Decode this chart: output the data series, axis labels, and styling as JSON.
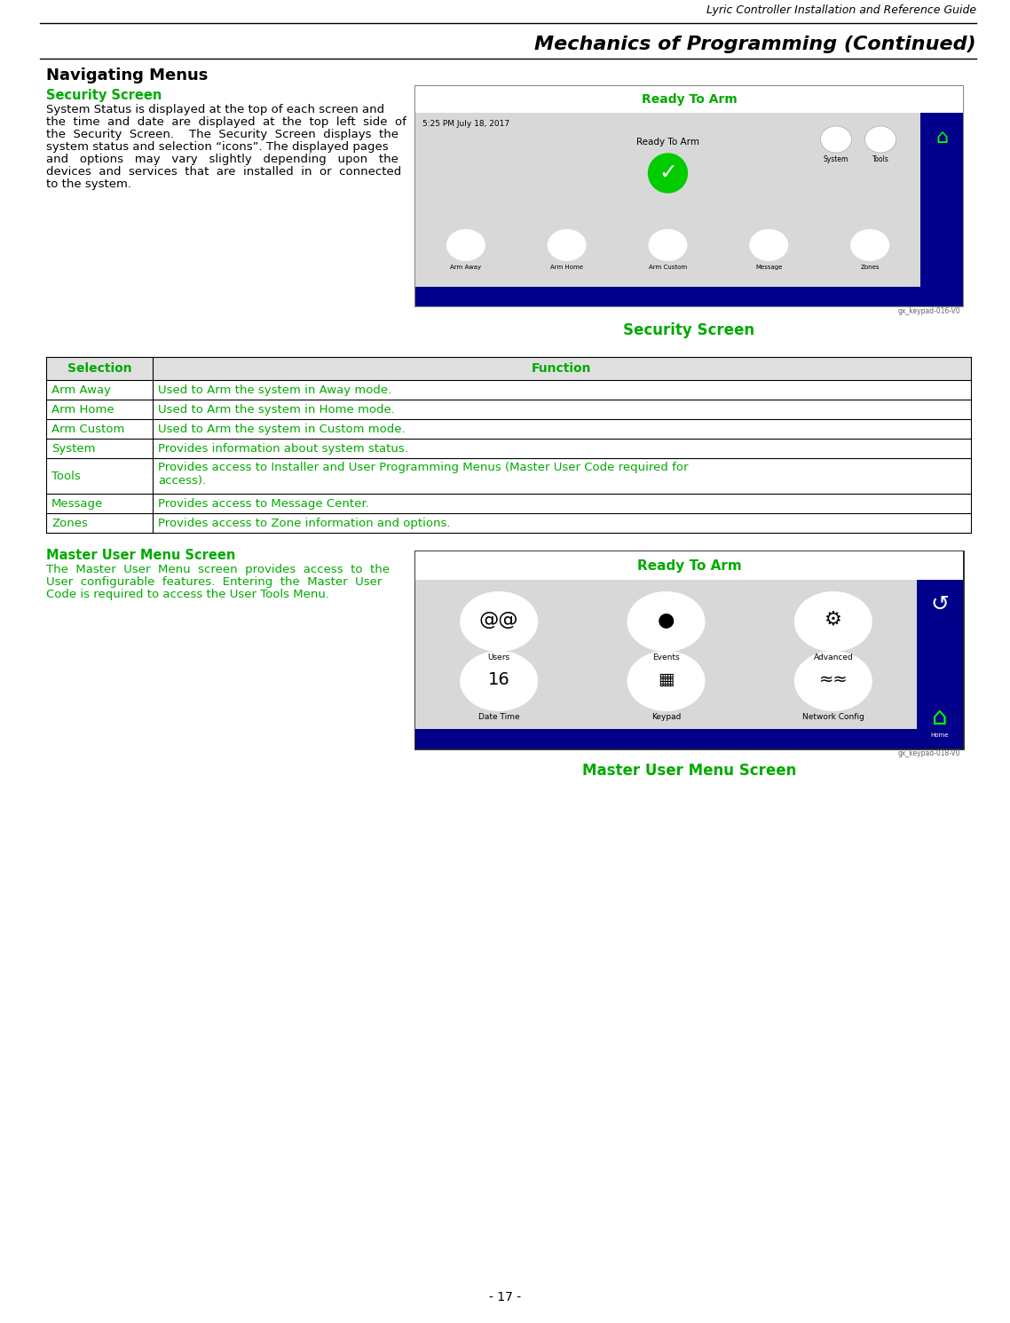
{
  "title_top": "Lyric Controller Installation and Reference Guide",
  "title_main": "Mechanics of Programming (Continued)",
  "section_title": "Navigating Menus",
  "subsection1_title": "Security Screen",
  "subsection1_body_lines": [
    "System Status is displayed at the top of each screen and",
    "the  time  and  date  are  displayed  at  the  top  left  side  of",
    "the  Security  Screen.    The  Security  Screen  displays  the",
    "system status and selection “icons”. The displayed pages",
    "and   options   may   vary   slightly   depending   upon   the",
    "devices  and  services  that  are  installed  in  or  connected",
    "to the system."
  ],
  "image1_caption": "Security Screen",
  "image1_label": "gx_keypad-016-V0",
  "table_header": [
    "Selection",
    "Function"
  ],
  "table_rows": [
    [
      "Arm Away",
      "Used to Arm the system in Away mode."
    ],
    [
      "Arm Home",
      "Used to Arm the system in Home mode."
    ],
    [
      "Arm Custom",
      "Used to Arm the system in Custom mode."
    ],
    [
      "System",
      "Provides information about system status."
    ],
    [
      "Tools",
      "Provides access to Installer and User Programming Menus (Master User Code required for\naccess)."
    ],
    [
      "Message",
      "Provides access to Message Center."
    ],
    [
      "Zones",
      "Provides access to Zone information and options."
    ]
  ],
  "subsection2_title": "Master User Menu Screen",
  "subsection2_body_lines": [
    "The  Master  User  Menu  screen  provides  access  to  the",
    "User  configurable  features.  Entering  the  Master  User",
    "Code is required to access the User Tools Menu."
  ],
  "image2_caption": "Master User Menu Screen",
  "image2_label": "gx_keypad-018-V0",
  "page_number": "- 17 -",
  "green_color": "#00AA00",
  "dark_blue": "#00008B",
  "bg_color": "#ffffff"
}
